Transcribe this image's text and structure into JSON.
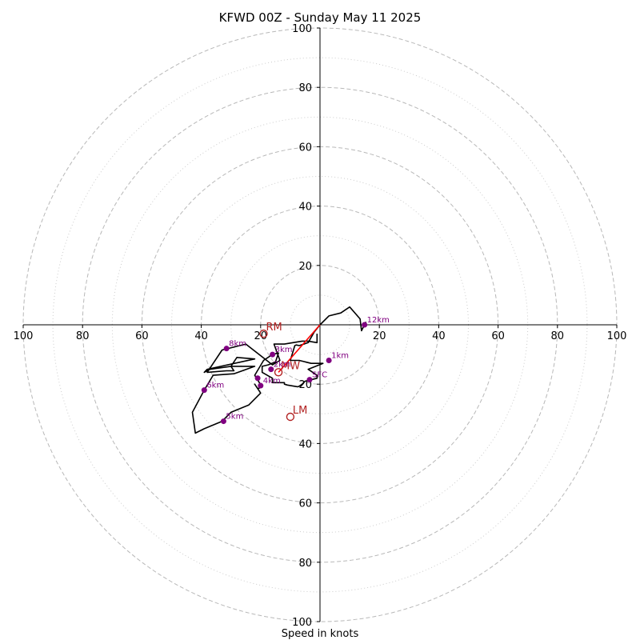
{
  "chart_data": {
    "type": "line",
    "title": "KFWD 00Z - Sunday May 11 2025",
    "xlabel": "Speed in knots",
    "rings_major": [
      20,
      40,
      60,
      80,
      100
    ],
    "rings_minor": [
      10,
      30,
      50,
      70,
      90
    ],
    "tick_labels": [
      "100",
      "80",
      "60",
      "40",
      "20",
      "20",
      "40",
      "60",
      "80",
      "100"
    ],
    "xlim": [
      -100,
      100
    ],
    "ylim": [
      -100,
      100
    ],
    "hodograph_color": "#000000",
    "height_marker_color": "#800080",
    "storm_motion_color": "#b22222",
    "series": [
      {
        "x": [
          15.5,
          14,
          13.5,
          10,
          7,
          3,
          0,
          -2,
          -4,
          -7,
          -8,
          -8.5,
          -10,
          -7,
          -3,
          1,
          -4,
          -1,
          -1,
          -5,
          -6,
          -7,
          -7.5,
          -8,
          -11,
          -12,
          -12,
          -16,
          -16,
          -19.5,
          -19.5,
          -17.5,
          -15,
          -14,
          -16,
          -19,
          -22,
          -19.5,
          -21,
          -22,
          -20,
          -24,
          -30,
          -33,
          -39,
          -42,
          -43,
          -39,
          -36,
          -29,
          -22,
          -30,
          -37,
          -39,
          -38,
          -22,
          -28,
          -30,
          -29,
          -31.5,
          -38,
          -33,
          -25,
          -16,
          -13.5,
          -15.5,
          -12,
          -6,
          -4,
          -1,
          -1
        ],
        "y": [
          1,
          -2,
          2,
          6,
          4,
          3,
          0,
          -2.5,
          -6,
          -7,
          -6.8,
          -7,
          -12,
          -12,
          -13,
          -13,
          -15,
          -17,
          -18,
          -19,
          -20,
          -20.7,
          -20.9,
          -20.8,
          -20.3,
          -20,
          -19.5,
          -19.5,
          -18,
          -16,
          -14,
          -13.5,
          -12.5,
          -9.5,
          -10,
          -12,
          -17,
          -21,
          -21.5,
          -20,
          -23,
          -27,
          -29.5,
          -32.5,
          -35,
          -36.5,
          -29.5,
          -22,
          -17,
          -16.5,
          -14,
          -14,
          -15,
          -16,
          -15,
          -11.5,
          -11,
          -14,
          -15.5,
          -15.5,
          -16,
          -8.5,
          -6.5,
          -13.5,
          -12,
          -6.5,
          -6.5,
          -5.5,
          -5.5,
          -6,
          -3
        ]
      }
    ],
    "height_markers": [
      {
        "label": "12km",
        "x": 15,
        "y": 0
      },
      {
        "label": "8km",
        "x": -31.5,
        "y": -8
      },
      {
        "label": "6km",
        "x": -39,
        "y": -22
      },
      {
        "label": "5km",
        "x": -32.5,
        "y": -32.5
      },
      {
        "label": "4km",
        "x": -20,
        "y": -20.5
      },
      {
        "label": "3km",
        "x": -16,
        "y": -10
      },
      {
        "label": "2km",
        "x": -16.5,
        "y": -15
      },
      {
        "label": "1km",
        "x": 3,
        "y": -12
      },
      {
        "label": "SFC",
        "x": -3.5,
        "y": -18.5
      },
      {
        "label": "",
        "x": -21,
        "y": -18
      }
    ],
    "storm_motion": [
      {
        "label": "RM",
        "x": -19,
        "y": -3
      },
      {
        "label": "MW",
        "x": -14,
        "y": -16
      },
      {
        "label": "LM",
        "x": -10,
        "y": -31
      }
    ]
  }
}
